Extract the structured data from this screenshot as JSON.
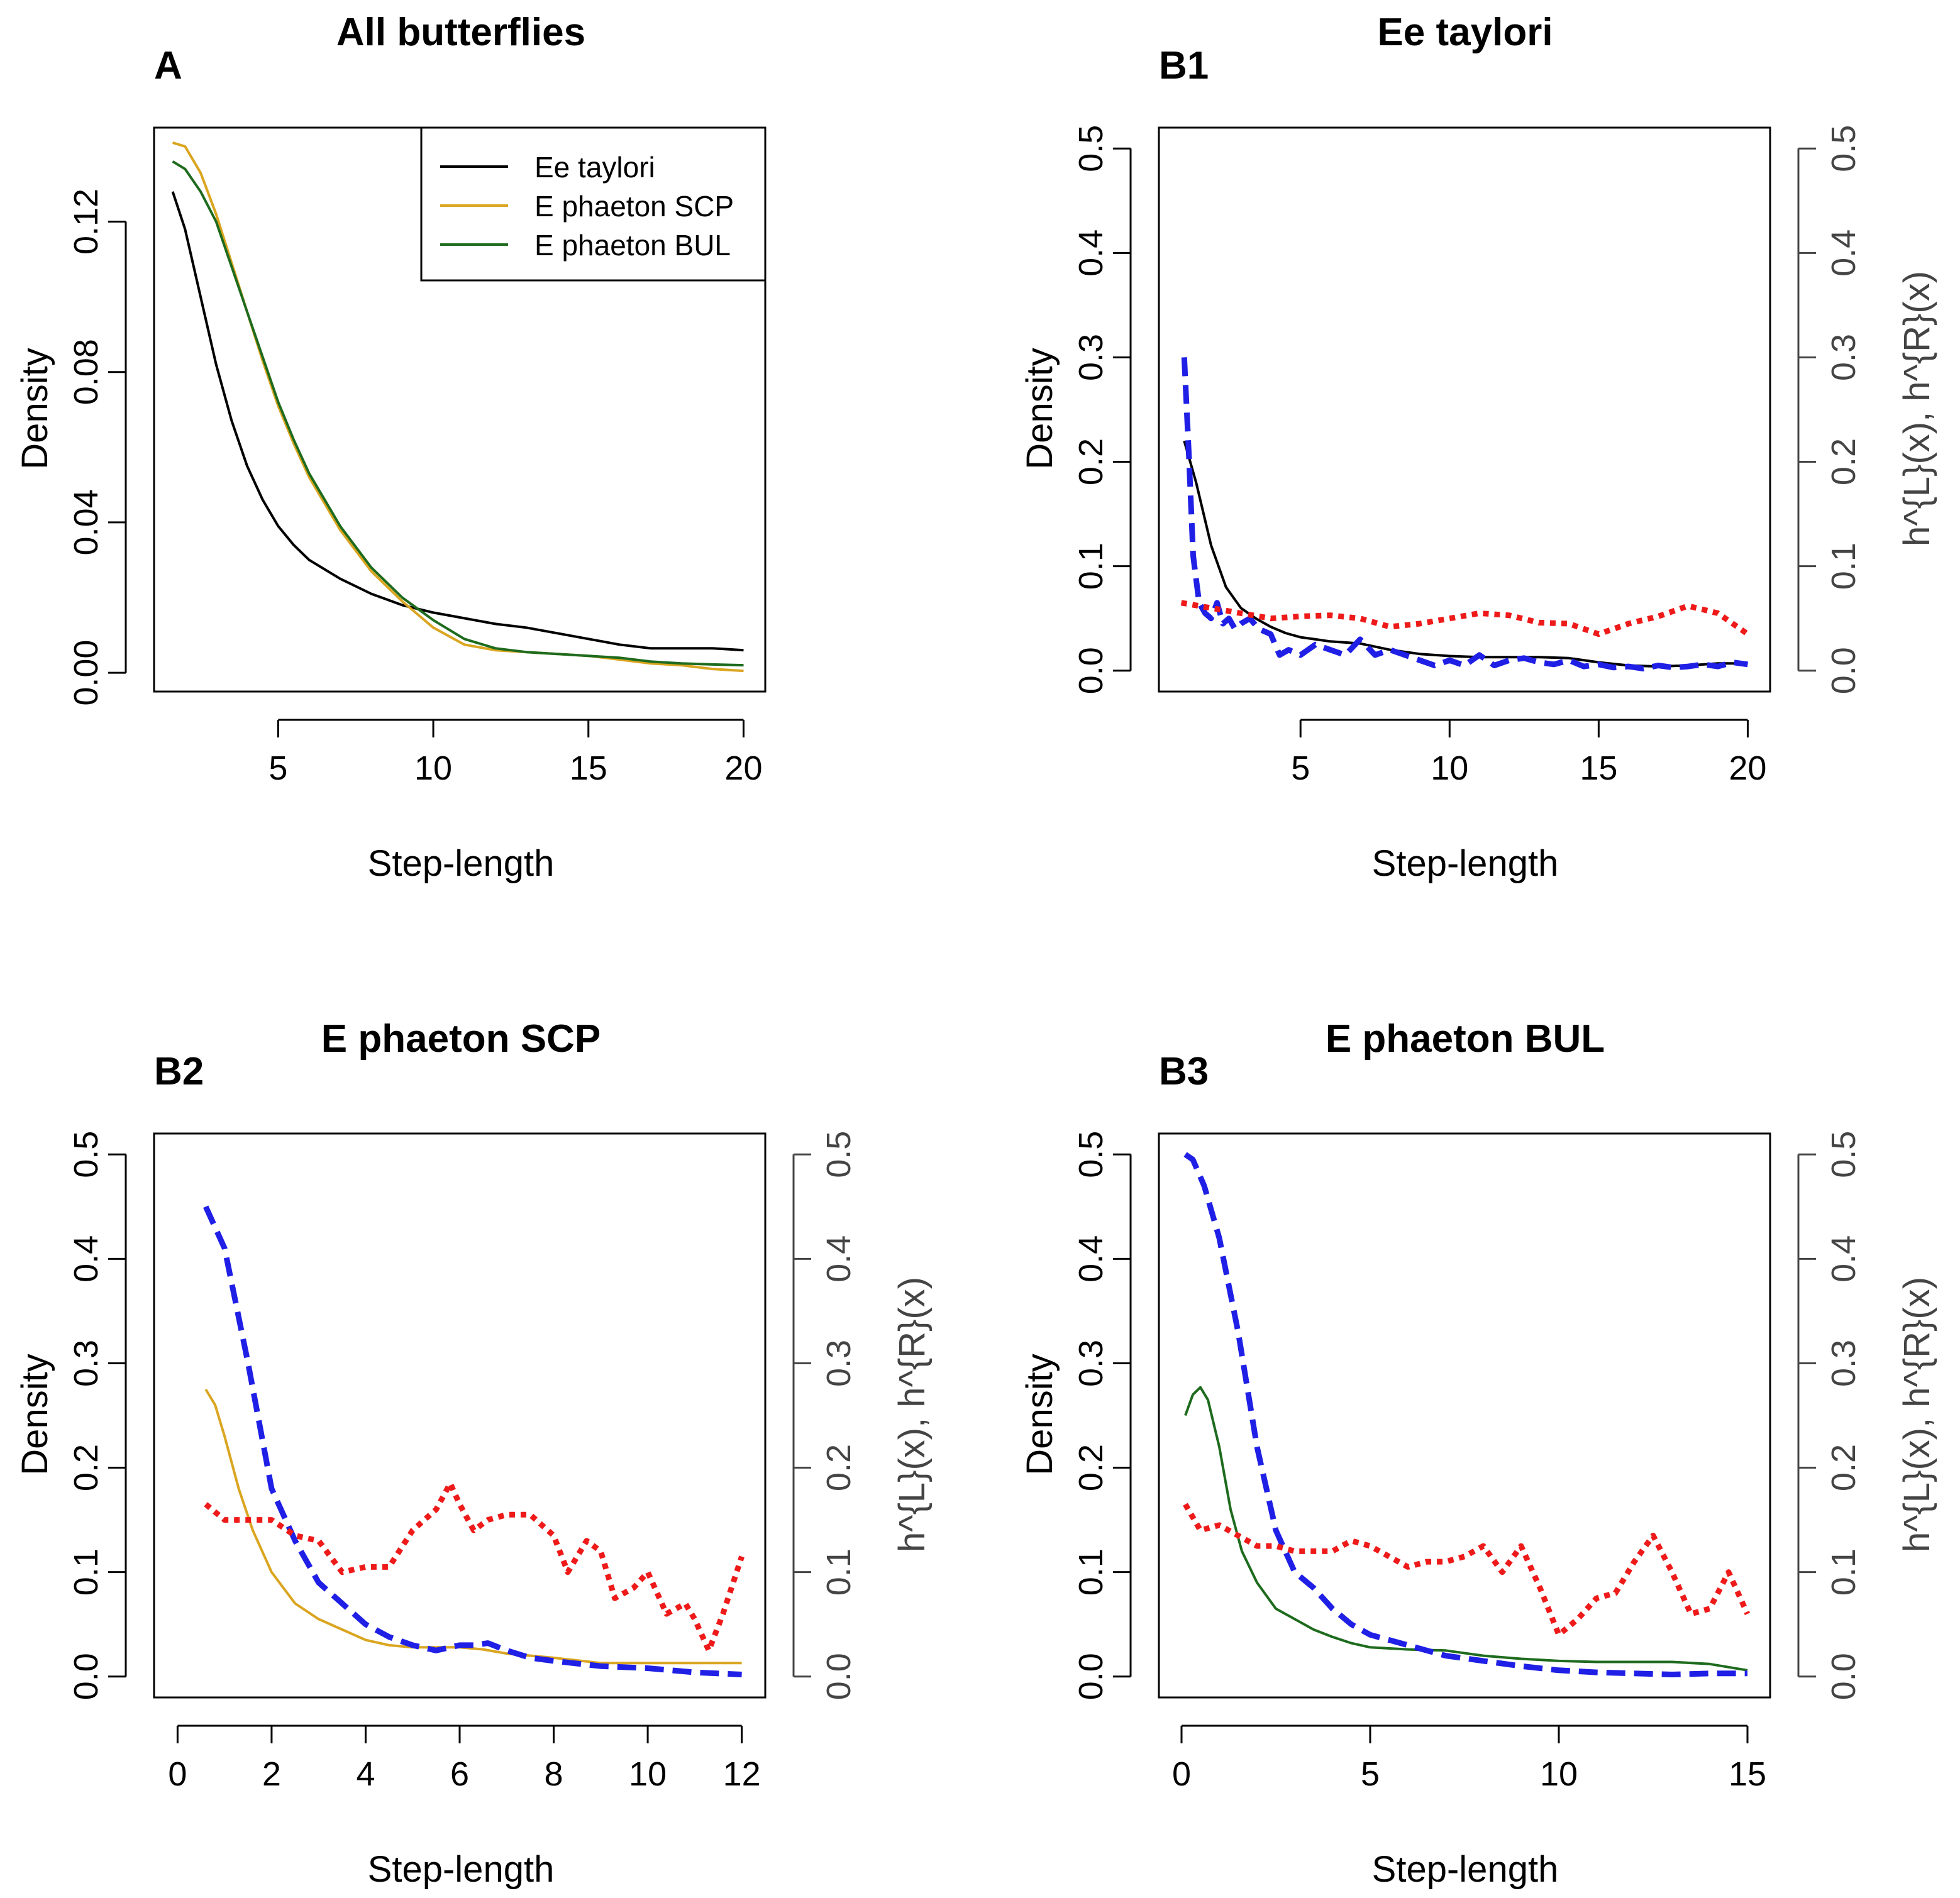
{
  "chart_data": [
    {
      "panel": "A",
      "type": "line",
      "title": "All butterflies",
      "xlabel": "Step-length",
      "ylabel": "Density",
      "xlim": [
        1,
        20.7
      ],
      "ylim": [
        -0.005,
        0.145
      ],
      "xticks": [
        5,
        10,
        15,
        20
      ],
      "yticks": [
        0.0,
        0.04,
        0.08,
        0.12
      ],
      "ytick_labels": [
        "0.00",
        "0.04",
        "0.08",
        "0.12"
      ],
      "legend": [
        "Ee taylori",
        "E phaeton SCP",
        "E phaeton BUL"
      ],
      "legend_position": "top-right",
      "series": [
        {
          "name": "Ee taylori",
          "color": "#000000",
          "style": "solid",
          "x": [
            1.6,
            2,
            2.5,
            3,
            3.5,
            4,
            4.5,
            5,
            5.5,
            6,
            7,
            8,
            9,
            10,
            11,
            12,
            13,
            14,
            15,
            16,
            17,
            18,
            19,
            20
          ],
          "y": [
            0.128,
            0.118,
            0.1,
            0.082,
            0.067,
            0.055,
            0.046,
            0.039,
            0.034,
            0.03,
            0.025,
            0.021,
            0.018,
            0.016,
            0.0145,
            0.013,
            0.012,
            0.0105,
            0.009,
            0.0075,
            0.0065,
            0.0065,
            0.0065,
            0.006
          ]
        },
        {
          "name": "E phaeton SCP",
          "color": "#DAA520",
          "style": "solid",
          "x": [
            1.6,
            2,
            2.5,
            3,
            3.5,
            4,
            4.5,
            5,
            5.5,
            6,
            7,
            8,
            9,
            10,
            11,
            12,
            13,
            14,
            15,
            16,
            17,
            18,
            19,
            20
          ],
          "y": [
            0.141,
            0.14,
            0.133,
            0.122,
            0.109,
            0.096,
            0.083,
            0.071,
            0.061,
            0.052,
            0.038,
            0.027,
            0.019,
            0.012,
            0.0075,
            0.006,
            0.0055,
            0.005,
            0.0045,
            0.0035,
            0.0025,
            0.002,
            0.001,
            0.0005
          ]
        },
        {
          "name": "E phaeton BUL",
          "color": "#1E6B1E",
          "style": "solid",
          "x": [
            1.6,
            2,
            2.5,
            3,
            3.5,
            4,
            4.5,
            5,
            5.5,
            6,
            7,
            8,
            9,
            10,
            11,
            12,
            13,
            14,
            15,
            16,
            17,
            18,
            19,
            20
          ],
          "y": [
            0.136,
            0.134,
            0.128,
            0.12,
            0.108,
            0.096,
            0.084,
            0.072,
            0.062,
            0.053,
            0.039,
            0.028,
            0.02,
            0.014,
            0.009,
            0.0065,
            0.0055,
            0.005,
            0.0045,
            0.004,
            0.003,
            0.0025,
            0.0022,
            0.002
          ]
        }
      ]
    },
    {
      "panel": "B1",
      "type": "line",
      "title": "Ee taylori",
      "xlabel": "Step-length",
      "ylabel": "Density",
      "ylabel_right": "h^{L}(x), h^{R}(x)",
      "xlim": [
        0.25,
        20.75
      ],
      "ylim": [
        -0.02,
        0.52
      ],
      "xticks": [
        5,
        10,
        15,
        20
      ],
      "yticks": [
        0.0,
        0.1,
        0.2,
        0.3,
        0.4,
        0.5
      ],
      "ytick_labels": [
        "0.0",
        "0.1",
        "0.2",
        "0.3",
        "0.4",
        "0.5"
      ],
      "series": [
        {
          "name": "density",
          "color": "#000000",
          "style": "solid",
          "x": [
            1.1,
            1.5,
            2,
            2.5,
            3,
            3.5,
            4,
            4.5,
            5,
            5.5,
            6,
            6.5,
            7,
            8,
            9,
            10,
            11,
            12,
            13,
            14,
            15,
            16,
            17,
            18,
            19,
            20
          ],
          "y": [
            0.22,
            0.18,
            0.12,
            0.08,
            0.06,
            0.05,
            0.042,
            0.036,
            0.032,
            0.03,
            0.028,
            0.027,
            0.026,
            0.02,
            0.016,
            0.014,
            0.013,
            0.013,
            0.013,
            0.012,
            0.008,
            0.005,
            0.004,
            0.005,
            0.007,
            0.007
          ]
        },
        {
          "name": "h^{L}(x)",
          "color": "#1F1FE6",
          "style": "dashed",
          "x": [
            1.1,
            1.25,
            1.4,
            1.6,
            1.8,
            2,
            2.2,
            2.4,
            2.6,
            2.8,
            3,
            3.3,
            3.6,
            4,
            4.3,
            4.6,
            5,
            5.5,
            6,
            6.5,
            7,
            7.5,
            8,
            8.5,
            9,
            9.5,
            10,
            10.5,
            11,
            11.5,
            12,
            12.5,
            13,
            13.5,
            14,
            14.5,
            15,
            15.5,
            16,
            16.5,
            17,
            17.5,
            18,
            18.5,
            19,
            19.5,
            20
          ],
          "y": [
            0.3,
            0.21,
            0.11,
            0.065,
            0.055,
            0.05,
            0.065,
            0.045,
            0.05,
            0.04,
            0.045,
            0.05,
            0.04,
            0.035,
            0.015,
            0.02,
            0.015,
            0.025,
            0.02,
            0.015,
            0.03,
            0.015,
            0.02,
            0.015,
            0.01,
            0.005,
            0.01,
            0.005,
            0.015,
            0.005,
            0.01,
            0.012,
            0.008,
            0.006,
            0.01,
            0.004,
            0.006,
            0.003,
            0.004,
            0.002,
            0.005,
            0.003,
            0.004,
            0.006,
            0.004,
            0.008,
            0.006
          ]
        },
        {
          "name": "h^{R}(x)",
          "color": "#EE1A1A",
          "style": "dotted",
          "x": [
            1,
            2,
            3,
            4,
            5,
            6,
            7,
            8,
            9,
            10,
            11,
            12,
            13,
            14,
            15,
            16,
            17,
            18,
            19,
            20
          ],
          "y": [
            0.065,
            0.06,
            0.055,
            0.05,
            0.052,
            0.053,
            0.05,
            0.042,
            0.045,
            0.05,
            0.055,
            0.053,
            0.046,
            0.045,
            0.035,
            0.045,
            0.052,
            0.062,
            0.055,
            0.035
          ]
        }
      ]
    },
    {
      "panel": "B2",
      "type": "line",
      "title": "E phaeton SCP",
      "xlabel": "Step-length",
      "ylabel": "Density",
      "ylabel_right": "h^{L}(x), h^{R}(x)",
      "xlim": [
        -0.5,
        12.5
      ],
      "ylim": [
        -0.02,
        0.52
      ],
      "xticks": [
        0,
        2,
        4,
        6,
        8,
        10,
        12
      ],
      "yticks": [
        0.0,
        0.1,
        0.2,
        0.3,
        0.4,
        0.5
      ],
      "ytick_labels": [
        "0.0",
        "0.1",
        "0.2",
        "0.3",
        "0.4",
        "0.5"
      ],
      "series": [
        {
          "name": "density",
          "color": "#DAA520",
          "style": "solid",
          "x": [
            0.6,
            0.8,
            1,
            1.3,
            1.6,
            2,
            2.5,
            3,
            3.5,
            4,
            4.5,
            5,
            5.5,
            6,
            6.5,
            7,
            8,
            9,
            10,
            11,
            12
          ],
          "y": [
            0.275,
            0.26,
            0.23,
            0.18,
            0.14,
            0.1,
            0.07,
            0.055,
            0.045,
            0.035,
            0.03,
            0.028,
            0.028,
            0.028,
            0.026,
            0.022,
            0.018,
            0.013,
            0.013,
            0.013,
            0.013
          ]
        },
        {
          "name": "h^{L}(x)",
          "color": "#1F1FE6",
          "style": "dashed",
          "x": [
            0.6,
            1,
            1.5,
            2,
            2.5,
            3,
            3.5,
            4,
            4.5,
            5,
            5.5,
            6,
            6.3,
            6.6,
            7,
            7.5,
            8,
            9,
            10,
            11,
            12
          ],
          "y": [
            0.45,
            0.41,
            0.3,
            0.18,
            0.13,
            0.09,
            0.07,
            0.05,
            0.038,
            0.03,
            0.025,
            0.03,
            0.03,
            0.032,
            0.025,
            0.018,
            0.015,
            0.01,
            0.008,
            0.004,
            0.002
          ]
        },
        {
          "name": "h^{R}(x)",
          "color": "#EE1A1A",
          "style": "dotted",
          "x": [
            0.6,
            1,
            1.5,
            2,
            2.5,
            3,
            3.5,
            4,
            4.5,
            5,
            5.5,
            5.8,
            6,
            6.3,
            6.6,
            7,
            7.5,
            8,
            8.3,
            8.7,
            9,
            9.3,
            9.7,
            10,
            10.4,
            10.8,
            11,
            11.3,
            11.6,
            12
          ],
          "y": [
            0.165,
            0.15,
            0.15,
            0.15,
            0.135,
            0.13,
            0.1,
            0.105,
            0.105,
            0.14,
            0.16,
            0.185,
            0.165,
            0.14,
            0.15,
            0.155,
            0.155,
            0.135,
            0.1,
            0.13,
            0.12,
            0.075,
            0.085,
            0.1,
            0.06,
            0.07,
            0.055,
            0.025,
            0.06,
            0.115
          ]
        }
      ]
    },
    {
      "panel": "B3",
      "type": "line",
      "title": "E phaeton BUL",
      "xlabel": "Step-length",
      "ylabel": "Density",
      "ylabel_right": "h^{L}(x), h^{R}(x)",
      "xlim": [
        -0.6,
        15.6
      ],
      "ylim": [
        -0.02,
        0.52
      ],
      "xticks": [
        0,
        5,
        10,
        15
      ],
      "yticks": [
        0.0,
        0.1,
        0.2,
        0.3,
        0.4,
        0.5
      ],
      "ytick_labels": [
        "0.0",
        "0.1",
        "0.2",
        "0.3",
        "0.4",
        "0.5"
      ],
      "series": [
        {
          "name": "density",
          "color": "#1E6B1E",
          "style": "solid",
          "x": [
            0.1,
            0.3,
            0.5,
            0.7,
            1,
            1.3,
            1.6,
            2,
            2.5,
            3,
            3.5,
            4,
            4.5,
            5,
            6,
            7,
            8,
            9,
            10,
            11,
            12,
            13,
            14,
            15
          ],
          "y": [
            0.25,
            0.27,
            0.277,
            0.265,
            0.22,
            0.16,
            0.12,
            0.09,
            0.065,
            0.055,
            0.045,
            0.038,
            0.032,
            0.028,
            0.026,
            0.025,
            0.02,
            0.017,
            0.015,
            0.014,
            0.014,
            0.014,
            0.012,
            0.006
          ]
        },
        {
          "name": "h^{L}(x)",
          "color": "#1F1FE6",
          "style": "dashed",
          "x": [
            0.1,
            0.3,
            0.6,
            1,
            1.5,
            2,
            2.5,
            3,
            3.5,
            4,
            4.5,
            5,
            5.5,
            6,
            6.5,
            7,
            8,
            9,
            10,
            11,
            12,
            13,
            14,
            15
          ],
          "y": [
            0.5,
            0.495,
            0.47,
            0.42,
            0.33,
            0.22,
            0.14,
            0.1,
            0.085,
            0.065,
            0.05,
            0.04,
            0.035,
            0.03,
            0.025,
            0.02,
            0.015,
            0.01,
            0.006,
            0.004,
            0.003,
            0.002,
            0.003,
            0.003
          ]
        },
        {
          "name": "h^{R}(x)",
          "color": "#EE1A1A",
          "style": "dotted",
          "x": [
            0.1,
            0.5,
            1,
            1.5,
            2,
            2.5,
            3,
            3.5,
            4,
            4.5,
            5,
            5.5,
            6,
            6.5,
            7,
            7.5,
            8,
            8.5,
            9,
            9.5,
            10,
            10.5,
            11,
            11.5,
            12,
            12.5,
            13,
            13.5,
            14,
            14.5,
            15
          ],
          "y": [
            0.165,
            0.14,
            0.145,
            0.135,
            0.125,
            0.125,
            0.12,
            0.12,
            0.12,
            0.13,
            0.125,
            0.115,
            0.105,
            0.11,
            0.11,
            0.115,
            0.125,
            0.1,
            0.125,
            0.085,
            0.04,
            0.055,
            0.075,
            0.08,
            0.11,
            0.135,
            0.1,
            0.06,
            0.065,
            0.1,
            0.06
          ]
        }
      ]
    }
  ]
}
